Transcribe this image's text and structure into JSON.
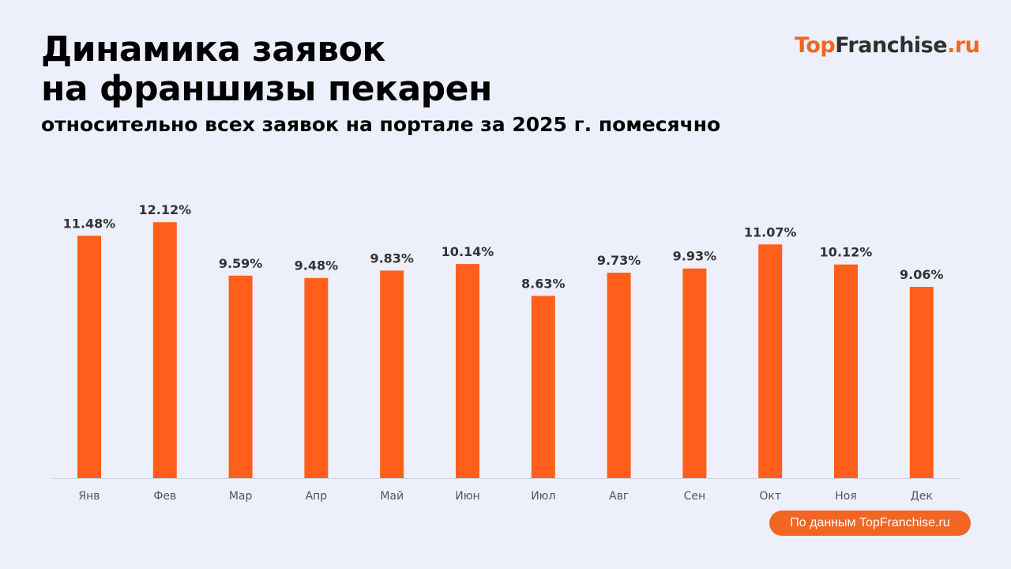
{
  "header": {
    "title_line1": "Динамика заявок",
    "title_line2": "на франшизы пекарен",
    "subtitle": "относительно всех заявок на портале за 2025 г. помесячно"
  },
  "logo": {
    "part1": "Top",
    "part2": "Franchise",
    "part3": ".ru"
  },
  "source": "По данным TopFranchise.ru",
  "chart_data": {
    "type": "bar",
    "title": "Динамика заявок на франшизы пекарен",
    "subtitle": "относительно всех заявок на портале за 2025 г. помесячно",
    "categories": [
      "Янв",
      "Фев",
      "Мар",
      "Апр",
      "Май",
      "Июн",
      "Июл",
      "Авг",
      "Сен",
      "Окт",
      "Ноя",
      "Дек"
    ],
    "values": [
      11.48,
      12.12,
      9.59,
      9.48,
      9.83,
      10.14,
      8.63,
      9.73,
      9.93,
      11.07,
      10.12,
      9.06
    ],
    "labels": [
      "11.48%",
      "12.12%",
      "9.59%",
      "9.48%",
      "9.83%",
      "10.14%",
      "8.63%",
      "9.73%",
      "9.93%",
      "11.07%",
      "10.12%",
      "9.06%"
    ],
    "ylim": [
      0,
      14
    ],
    "grid": false,
    "bar_color": "#ff5f1a"
  }
}
